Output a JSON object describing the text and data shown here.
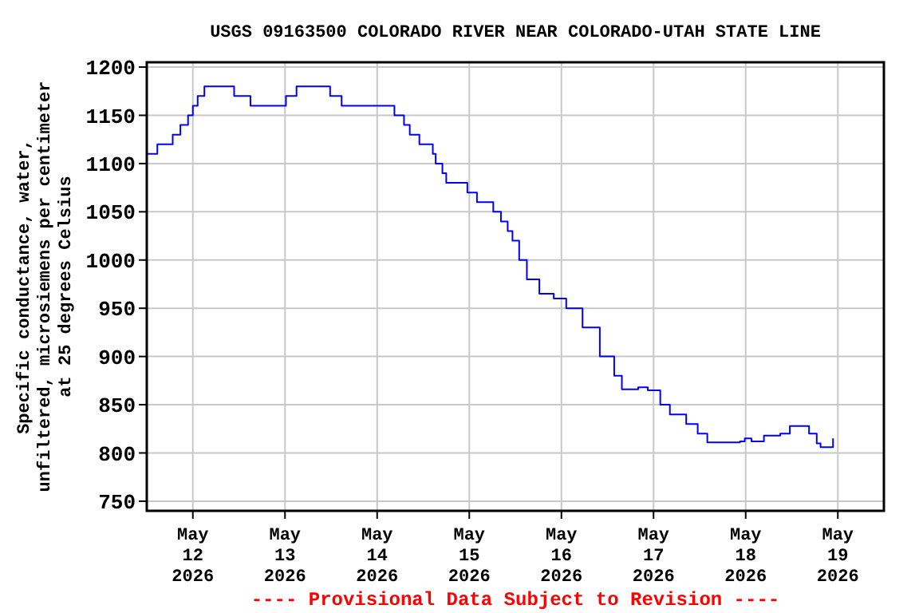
{
  "chart_data": {
    "type": "step",
    "title": "USGS 09163500 COLORADO RIVER NEAR COLORADO-UTAH STATE LINE",
    "ylabel": "Specific conductance, water, unfiltered, microsiemens per centimeter at 25 degrees Celsius",
    "annotations": [
      "---- Provisional Data Subject to Revision ----"
    ],
    "xlim": [
      "2026-05-11T12:00",
      "2026-05-19T12:00"
    ],
    "ylim": [
      740,
      1205
    ],
    "xticks": [
      {
        "value": "2026-05-12",
        "label": "May 12 2026"
      },
      {
        "value": "2026-05-13",
        "label": "May 13 2026"
      },
      {
        "value": "2026-05-14",
        "label": "May 14 2026"
      },
      {
        "value": "2026-05-15",
        "label": "May 15 2026"
      },
      {
        "value": "2026-05-16",
        "label": "May 16 2026"
      },
      {
        "value": "2026-05-17",
        "label": "May 17 2026"
      },
      {
        "value": "2026-05-18",
        "label": "May 18 2026"
      },
      {
        "value": "2026-05-19",
        "label": "May 19 2026"
      }
    ],
    "yticks": [
      750,
      800,
      850,
      900,
      950,
      1000,
      1050,
      1100,
      1150,
      1200
    ],
    "grid": true,
    "series": [
      {
        "color": "#0000ff",
        "x": [
          "2026-05-11T12:00",
          "2026-05-11T14:45",
          "2026-05-11T18:45",
          "2026-05-11T20:45",
          "2026-05-11T22:45",
          "2026-05-12T00:00",
          "2026-05-12T01:15",
          "2026-05-12T03:00",
          "2026-05-12T10:45",
          "2026-05-12T15:00",
          "2026-05-13T00:15",
          "2026-05-13T03:00",
          "2026-05-13T11:45",
          "2026-05-13T14:45",
          "2026-05-14T04:30",
          "2026-05-14T07:00",
          "2026-05-14T08:30",
          "2026-05-14T11:00",
          "2026-05-14T14:30",
          "2026-05-14T15:15",
          "2026-05-14T17:00",
          "2026-05-14T18:00",
          "2026-05-14T23:30",
          "2026-05-15T02:00",
          "2026-05-15T06:15",
          "2026-05-15T08:15",
          "2026-05-15T10:00",
          "2026-05-15T11:15",
          "2026-05-15T13:00",
          "2026-05-15T15:00",
          "2026-05-15T18:15",
          "2026-05-15T22:00",
          "2026-05-16T01:15",
          "2026-05-16T05:30",
          "2026-05-16T10:00",
          "2026-05-16T13:45",
          "2026-05-16T15:45",
          "2026-05-16T20:00",
          "2026-05-16T22:30",
          "2026-05-17T01:45",
          "2026-05-17T04:15",
          "2026-05-17T08:30",
          "2026-05-17T11:30",
          "2026-05-17T14:00",
          "2026-05-17T22:30",
          "2026-05-17T23:45",
          "2026-05-18T01:30",
          "2026-05-18T04:45",
          "2026-05-18T09:00",
          "2026-05-18T11:30",
          "2026-05-18T14:45",
          "2026-05-18T16:30",
          "2026-05-18T18:30",
          "2026-05-18T19:30",
          "2026-05-18T21:00",
          "2026-05-18T22:45"
        ],
        "values": [
          1110,
          1120,
          1130,
          1140,
          1150,
          1160,
          1170,
          1180,
          1170,
          1160,
          1170,
          1180,
          1170,
          1160,
          1150,
          1140,
          1130,
          1120,
          1110,
          1100,
          1090,
          1080,
          1070,
          1060,
          1050,
          1040,
          1030,
          1020,
          1000,
          980,
          965,
          960,
          950,
          930,
          900,
          880,
          866,
          868,
          865,
          850,
          840,
          830,
          820,
          811,
          812,
          815,
          812,
          818,
          820,
          828,
          828,
          820,
          810,
          806,
          806,
          815
        ]
      }
    ]
  }
}
